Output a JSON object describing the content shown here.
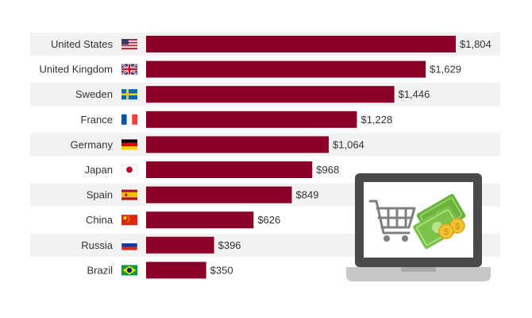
{
  "chart_data": {
    "type": "bar",
    "orientation": "horizontal",
    "categories": [
      "United States",
      "United Kingdom",
      "Sweden",
      "France",
      "Germany",
      "Japan",
      "Spain",
      "China",
      "Russia",
      "Brazil"
    ],
    "values": [
      1804,
      1629,
      1446,
      1228,
      1064,
      968,
      849,
      626,
      396,
      350
    ],
    "value_labels": [
      "$1,804",
      "$1,629",
      "$1,446",
      "$1,228",
      "$1,064",
      "$968",
      "$849",
      "$626",
      "$396",
      "$350"
    ],
    "flags": [
      "us-flag-icon",
      "uk-flag-icon",
      "sweden-flag-icon",
      "france-flag-icon",
      "germany-flag-icon",
      "japan-flag-icon",
      "spain-flag-icon",
      "china-flag-icon",
      "russia-flag-icon",
      "brazil-flag-icon"
    ],
    "xlim": [
      0,
      1804
    ],
    "grid": false,
    "legend": "none",
    "bar_color": "#8b0029",
    "row_stripe_color": "#f2f2f2"
  },
  "illustration": {
    "icons": [
      "laptop-icon",
      "shopping-cart-icon",
      "banknotes-icon",
      "coins-icon"
    ],
    "colors": {
      "laptop_frame": "#4a4a4a",
      "laptop_base": "#c8c8c8",
      "screen": "#ffffff",
      "cart": "#808080",
      "money": "#7cc24a",
      "coins": "#f2c230"
    }
  }
}
